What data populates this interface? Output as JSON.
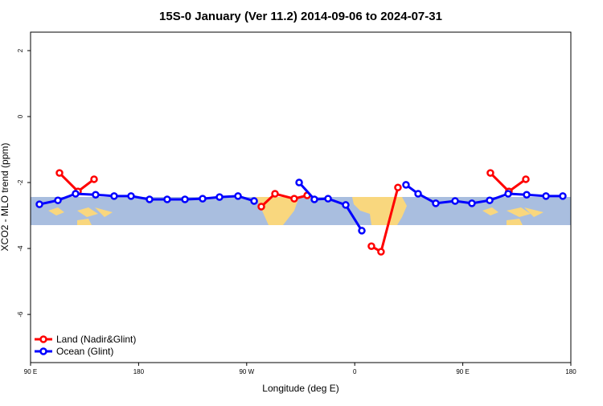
{
  "chart_data": {
    "type": "line",
    "title": "15S-0 January (Ver 11.2)   2014-09-06 to 2024-07-31",
    "x_label": "Longitude (deg E)",
    "y_label": "XCO2 - MLO trend (ppm)",
    "xlim": [
      90,
      540
    ],
    "xticks": [
      {
        "value": 90,
        "label": "90 E"
      },
      180,
      {
        "value": 270,
        "label": "90 W"
      },
      {
        "value": 360,
        "label": "0"
      },
      {
        "value": 450,
        "label": "90 E"
      },
      {
        "value": 540,
        "label": "180"
      }
    ],
    "ylim": [
      -7.46,
      2.56
    ],
    "yticks": [
      -6,
      -4,
      -2,
      0,
      2
    ],
    "legend": "bottom-left",
    "series": [
      {
        "name": "Land (Nadir&Glint)",
        "color": "#ff0000",
        "x": [
          114.1,
          129.5,
          142.9,
          null,
          282.2,
          293.6,
          309.6,
          320.4,
          null,
          373.9,
          381.9,
          396,
          null,
          473,
          488.4,
          502.5
        ],
        "values": [
          -1.71,
          -2.27,
          -1.9,
          null,
          -2.73,
          -2.34,
          -2.49,
          -2.39,
          null,
          -3.93,
          -4.1,
          -2.15,
          null,
          -1.71,
          -2.27,
          -1.9
        ]
      },
      {
        "name": "Ocean (Glint)",
        "color": "#0000ff",
        "x": [
          97.4,
          112.8,
          127.5,
          144.2,
          159.6,
          173.7,
          189.1,
          203.8,
          218.6,
          233.3,
          247.4,
          262.8,
          276.2,
          null,
          313.7,
          326.4,
          337.8,
          352.5,
          365.9,
          null,
          402.7,
          412.8,
          427.5,
          443.6,
          457.6,
          472.4,
          487.8,
          503.2,
          519.3,
          533.3
        ],
        "values": [
          -2.66,
          -2.54,
          -2.34,
          -2.37,
          -2.41,
          -2.41,
          -2.51,
          -2.51,
          -2.51,
          -2.49,
          -2.44,
          -2.41,
          -2.56,
          null,
          -2.0,
          -2.51,
          -2.49,
          -2.68,
          -3.46,
          null,
          -2.07,
          -2.34,
          -2.63,
          -2.56,
          -2.63,
          -2.54,
          -2.34,
          -2.37,
          -2.41,
          -2.41
        ]
      }
    ]
  }
}
